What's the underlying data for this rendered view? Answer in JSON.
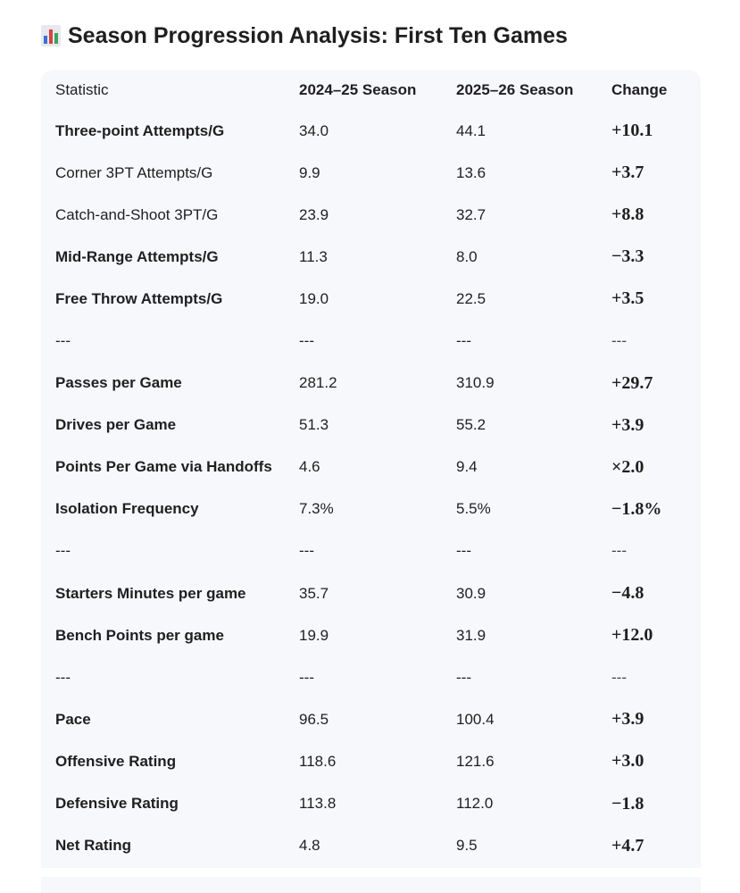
{
  "header": {
    "title": "Season Progression Analysis: First Ten Games"
  },
  "table": {
    "columns": [
      "Statistic",
      "2024–25 Season",
      "2025–26 Season",
      "Change"
    ],
    "rows": [
      {
        "cells": [
          "Three-point Attempts/G",
          "34.0",
          "44.1",
          "+10.1"
        ],
        "bold": true
      },
      {
        "cells": [
          "Corner 3PT Attempts/G",
          "9.9",
          "13.6",
          "+3.7"
        ],
        "bold": false
      },
      {
        "cells": [
          "Catch-and-Shoot 3PT/G",
          "23.9",
          "32.7",
          "+8.8"
        ],
        "bold": false
      },
      {
        "cells": [
          "Mid-Range Attempts/G",
          "11.3",
          "8.0",
          "−3.3"
        ],
        "bold": true
      },
      {
        "cells": [
          "Free Throw Attempts/G",
          "19.0",
          "22.5",
          "+3.5"
        ],
        "bold": true
      },
      {
        "cells": [
          "---",
          "---",
          "---",
          "---"
        ],
        "bold": false
      },
      {
        "cells": [
          "Passes per Game",
          "281.2",
          "310.9",
          "+29.7"
        ],
        "bold": true
      },
      {
        "cells": [
          "Drives per Game",
          "51.3",
          "55.2",
          "+3.9"
        ],
        "bold": true
      },
      {
        "cells": [
          "Points Per Game via Handoffs",
          "4.6",
          "9.4",
          "×2.0"
        ],
        "bold": true
      },
      {
        "cells": [
          "Isolation Frequency",
          "7.3%",
          "5.5%",
          "−1.8%"
        ],
        "bold": true
      },
      {
        "cells": [
          "---",
          "---",
          "---",
          "---"
        ],
        "bold": false
      },
      {
        "cells": [
          "Starters Minutes per game",
          "35.7",
          "30.9",
          "−4.8"
        ],
        "bold": true
      },
      {
        "cells": [
          "Bench Points per game",
          "19.9",
          "31.9",
          "+12.0"
        ],
        "bold": true
      },
      {
        "cells": [
          "---",
          "---",
          "---",
          "---"
        ],
        "bold": false
      },
      {
        "cells": [
          "Pace",
          "96.5",
          "100.4",
          "+3.9"
        ],
        "bold": true
      },
      {
        "cells": [
          "Offensive Rating",
          "118.6",
          "121.6",
          "+3.0"
        ],
        "bold": true
      },
      {
        "cells": [
          "Defensive Rating",
          "113.8",
          "112.0",
          "−1.8"
        ],
        "bold": true
      },
      {
        "cells": [
          "Net Rating",
          "4.8",
          "9.5",
          "+4.7"
        ],
        "bold": true
      }
    ]
  }
}
